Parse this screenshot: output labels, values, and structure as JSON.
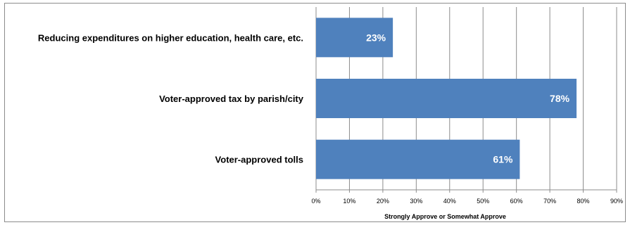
{
  "chart_data": {
    "type": "bar",
    "orientation": "horizontal",
    "categories": [
      "Reducing expenditures on higher education, health care, etc.",
      "Voter-approved tax by parish/city",
      "Voter-approved tolls"
    ],
    "values": [
      23,
      78,
      61
    ],
    "value_labels": [
      "23%",
      "78%",
      "61%"
    ],
    "xlabel": "Strongly Approve or Somewhat Approve",
    "ylabel": "",
    "xlim": [
      0,
      90
    ],
    "ticks": [
      "0%",
      "10%",
      "20%",
      "30%",
      "40%",
      "50%",
      "60%",
      "70%",
      "80%",
      "90%"
    ],
    "grid": true,
    "bar_color": "#4f81bd",
    "grid_color": "#8c8c8c"
  }
}
